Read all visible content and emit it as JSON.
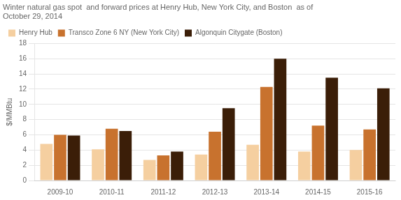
{
  "chart_data": {
    "type": "bar",
    "title": [
      "Winter natural gas spot  and forward prices at Henry Hub, New York City, and Boston  as of",
      "October 29, 2014"
    ],
    "y_label": "$/MMBtu",
    "categories": [
      "2009-10",
      "2010-11",
      "2011-12",
      "2012-13",
      "2013-14",
      "2014-15",
      "2015-16"
    ],
    "series": [
      {
        "name": "Henry Hub",
        "color": "#f5cfa0",
        "values": [
          4.8,
          4.1,
          2.7,
          3.4,
          4.7,
          3.8,
          4.0
        ]
      },
      {
        "name": "Transco Zone 6 NY (New York City)",
        "color": "#c8722e",
        "values": [
          6.0,
          6.8,
          3.3,
          6.4,
          12.3,
          7.2,
          6.7
        ]
      },
      {
        "name": "Algonquin Citygate (Boston)",
        "color": "#3b1e08",
        "values": [
          5.9,
          6.5,
          3.8,
          9.5,
          16.0,
          13.5,
          12.1
        ]
      }
    ],
    "ylim": [
      0,
      18
    ],
    "yticks": [
      0,
      2,
      4,
      6,
      8,
      10,
      12,
      14,
      16,
      18
    ],
    "grid": true,
    "legend": "upper left"
  }
}
